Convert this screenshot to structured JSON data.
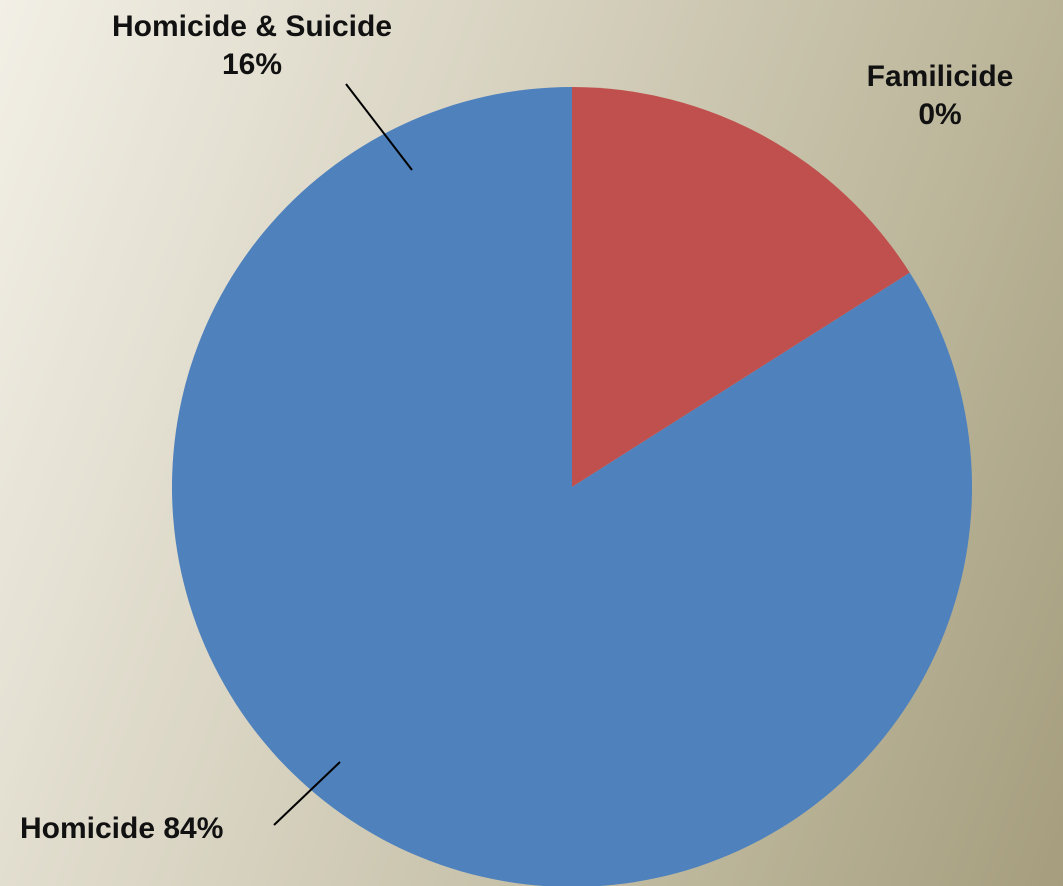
{
  "chart_data": {
    "type": "pie",
    "slices": [
      {
        "name": "Homicide",
        "value": 84,
        "color": "#4f81bd",
        "label": "Homicide 84%"
      },
      {
        "name": "Homicide & Suicide",
        "value": 16,
        "color": "#c0504d",
        "label_name": "Homicide & Suicide",
        "label_pct": "16%"
      },
      {
        "name": "Familicide",
        "value": 0,
        "color": "#9bbb59",
        "label_name": "Familicide",
        "label_pct": "0%"
      }
    ],
    "start_angle": "12 o'clock",
    "direction": "clockwise",
    "legend": "none"
  }
}
